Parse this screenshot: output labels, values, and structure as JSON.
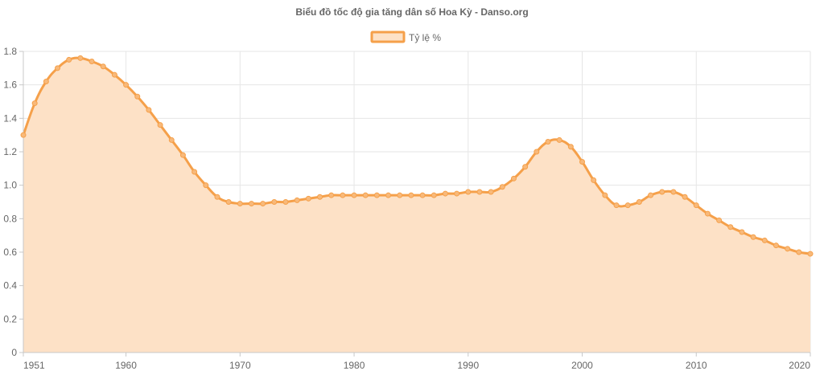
{
  "chart_data": {
    "type": "area",
    "title": "Biểu đồ tốc độ gia tăng dân số Hoa Kỳ - Danso.org",
    "legend": {
      "label": "Tỷ lệ %",
      "position": "top"
    },
    "colors": {
      "line": "#f5a04a",
      "fill": "#fde1c6",
      "grid": "#e6e6e6",
      "axis": "#c8c8c8",
      "text": "#666666"
    },
    "grid": true,
    "xlim": [
      1951,
      2020
    ],
    "ylim": [
      0,
      1.8
    ],
    "xticks": [
      "1951",
      "1960",
      "1970",
      "1980",
      "1990",
      "2000",
      "2010",
      "2020"
    ],
    "yticks": [
      "0",
      "0.2",
      "0.4",
      "0.6",
      "0.8",
      "1.0",
      "1.2",
      "1.4",
      "1.6",
      "1.8"
    ],
    "series": [
      {
        "name": "Tỷ lệ %",
        "x": [
          1951,
          1952,
          1953,
          1954,
          1955,
          1956,
          1957,
          1958,
          1959,
          1960,
          1961,
          1962,
          1963,
          1964,
          1965,
          1966,
          1967,
          1968,
          1969,
          1970,
          1971,
          1972,
          1973,
          1974,
          1975,
          1976,
          1977,
          1978,
          1979,
          1980,
          1981,
          1982,
          1983,
          1984,
          1985,
          1986,
          1987,
          1988,
          1989,
          1990,
          1991,
          1992,
          1993,
          1994,
          1995,
          1996,
          1997,
          1998,
          1999,
          2000,
          2001,
          2002,
          2003,
          2004,
          2005,
          2006,
          2007,
          2008,
          2009,
          2010,
          2011,
          2012,
          2013,
          2014,
          2015,
          2016,
          2017,
          2018,
          2019,
          2020
        ],
        "values": [
          1.3,
          1.49,
          1.62,
          1.7,
          1.75,
          1.76,
          1.74,
          1.71,
          1.66,
          1.6,
          1.53,
          1.45,
          1.36,
          1.27,
          1.18,
          1.08,
          1.0,
          0.93,
          0.9,
          0.89,
          0.89,
          0.89,
          0.9,
          0.9,
          0.91,
          0.92,
          0.93,
          0.94,
          0.94,
          0.94,
          0.94,
          0.94,
          0.94,
          0.94,
          0.94,
          0.94,
          0.94,
          0.95,
          0.95,
          0.96,
          0.96,
          0.96,
          0.99,
          1.04,
          1.11,
          1.2,
          1.26,
          1.27,
          1.23,
          1.14,
          1.03,
          0.94,
          0.88,
          0.88,
          0.9,
          0.94,
          0.96,
          0.96,
          0.93,
          0.88,
          0.83,
          0.79,
          0.75,
          0.72,
          0.69,
          0.67,
          0.64,
          0.62,
          0.6,
          0.59
        ]
      }
    ]
  }
}
